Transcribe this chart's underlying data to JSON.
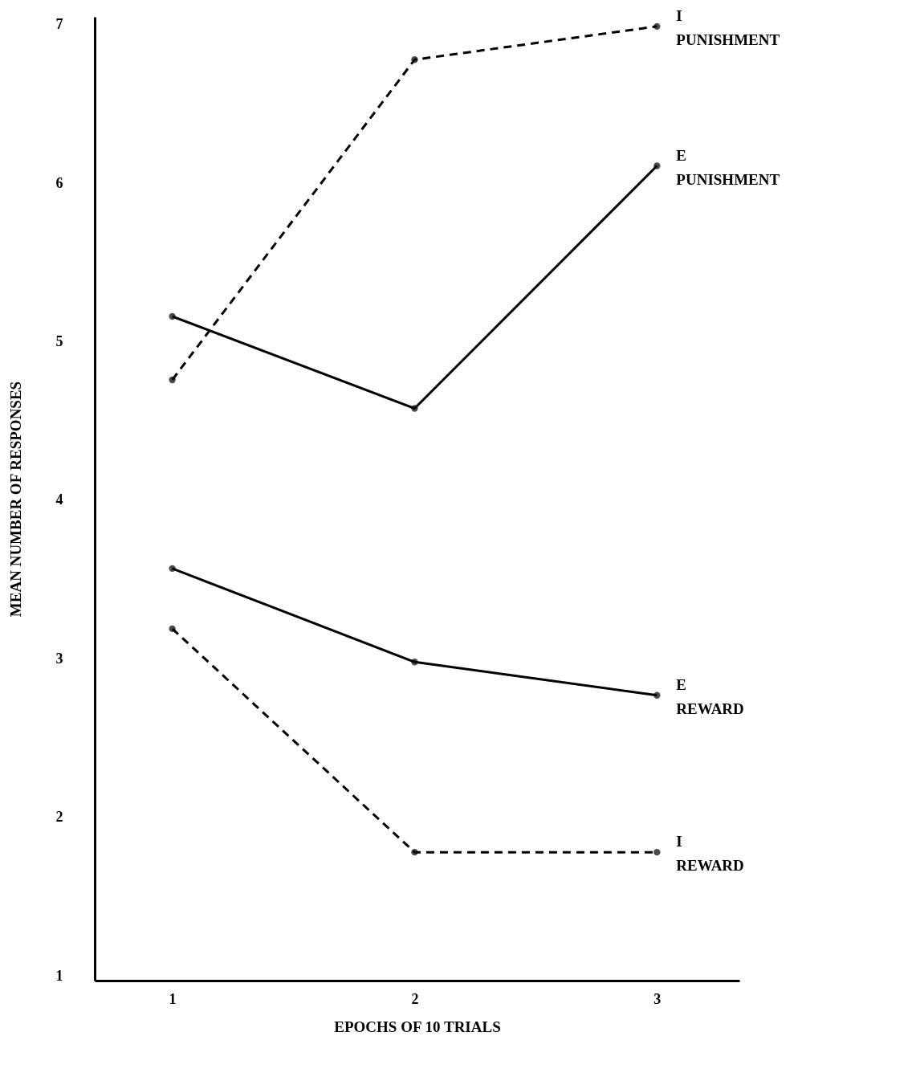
{
  "chart_data": {
    "type": "line",
    "xlabel": "EPOCHS OF  10  TRIALS",
    "ylabel": "MEAN  NUMBER  OF  RESPONSES",
    "x": [
      1,
      2,
      3
    ],
    "xlim": [
      0.68,
      3.34
    ],
    "xticks": [
      1,
      2,
      3
    ],
    "ylim": [
      0.97,
      7.05
    ],
    "yticks": [
      1,
      2,
      3,
      4,
      5,
      6,
      7
    ],
    "grid": false,
    "legend": false,
    "marker": "circle",
    "series": [
      {
        "name": "I PUNISHMENT",
        "color": "#000000",
        "line_style": "dashed",
        "values": [
          4.76,
          6.78,
          6.99
        ]
      },
      {
        "name": "E PUNISHMENT",
        "color": "#000000",
        "line_style": "solid",
        "values": [
          5.16,
          4.58,
          6.11
        ]
      },
      {
        "name": "E REWARD",
        "color": "#000000",
        "line_style": "solid",
        "values": [
          3.57,
          2.98,
          2.77
        ]
      },
      {
        "name": "I REWARD",
        "color": "#000000",
        "line_style": "dashed",
        "values": [
          3.19,
          1.78,
          1.78
        ]
      }
    ]
  }
}
